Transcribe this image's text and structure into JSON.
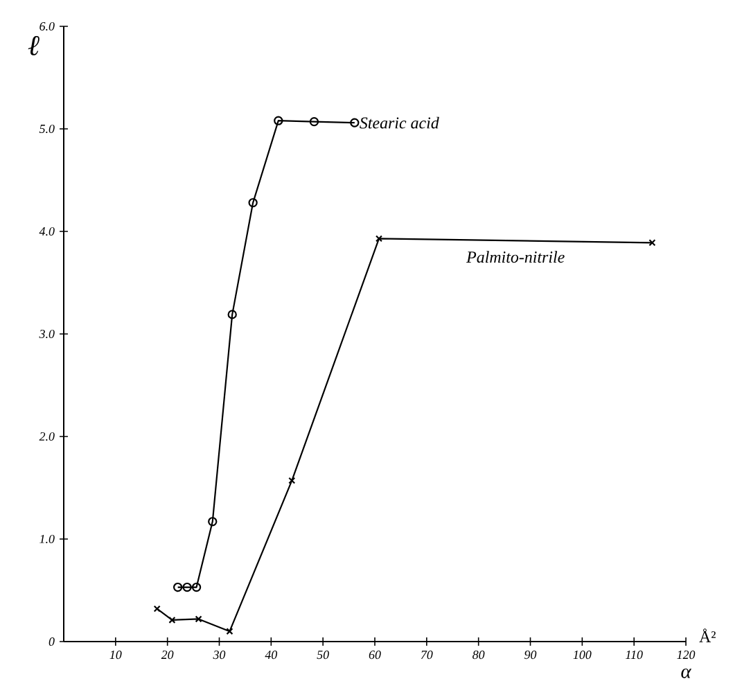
{
  "chart_data": {
    "type": "line",
    "xlabel": "α",
    "ylabel": "ℓ",
    "annotations": [
      "Å²"
    ],
    "xlim": [
      0,
      120
    ],
    "ylim": [
      0,
      6
    ],
    "xticks": [
      10,
      20,
      30,
      40,
      50,
      60,
      70,
      80,
      90,
      100,
      110,
      120
    ],
    "yticks": [
      0,
      {
        "value": 1,
        "label": "1.0"
      },
      {
        "value": 2,
        "label": "2.0"
      },
      {
        "value": 3,
        "label": "3.0"
      },
      {
        "value": 4,
        "label": "4.0"
      },
      {
        "value": 5,
        "label": "5.0"
      },
      {
        "value": 6,
        "label": "6.0"
      }
    ],
    "legend": false,
    "line_style": "solid",
    "series": [
      {
        "name": "Stearic acid",
        "color": "#000000",
        "marker": "circle",
        "x": [
          22.0,
          23.8,
          25.6,
          28.7,
          32.5,
          36.5,
          41.4,
          48.3,
          56.1
        ],
        "values": [
          0.53,
          0.53,
          0.53,
          1.17,
          3.19,
          4.28,
          5.08,
          5.07,
          5.06
        ]
      },
      {
        "name": "Palmito-nitrile",
        "color": "#000000",
        "marker": "cross",
        "x": [
          18.0,
          20.9,
          26.0,
          32.0,
          44.0,
          60.8,
          113.5
        ],
        "values": [
          0.32,
          0.21,
          0.22,
          0.1,
          1.57,
          3.93,
          3.89
        ]
      }
    ]
  }
}
